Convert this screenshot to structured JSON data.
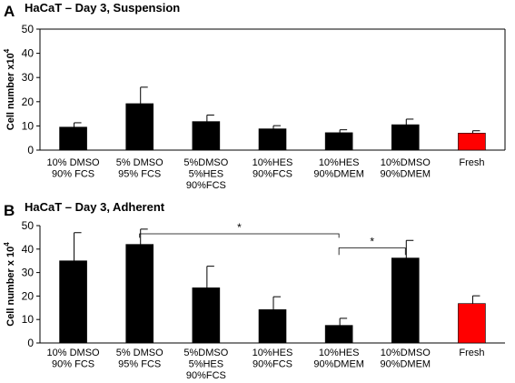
{
  "chart_data": [
    {
      "type": "bar",
      "panel": "A",
      "title": "HaCaT – Day 3,  Suspension",
      "ylabel": "Cell number x10",
      "ylabel_exp": "4",
      "ylim": [
        0,
        50
      ],
      "yticks": [
        "0",
        "10",
        "20",
        "30",
        "40",
        "50"
      ],
      "categories": [
        [
          "10% DMSO",
          "90% FCS"
        ],
        [
          "5% DMSO",
          "95% FCS"
        ],
        [
          "5%DMSO",
          "5%HES",
          "90%FCS"
        ],
        [
          "10%HES",
          "90%FCS"
        ],
        [
          "10%HES",
          "90%DMEM"
        ],
        [
          "10%DMSO",
          "90%DMEM"
        ],
        [
          "Fresh"
        ]
      ],
      "values": [
        9.5,
        19.2,
        11.8,
        8.8,
        7.2,
        10.5,
        7.0
      ],
      "errors": [
        1.8,
        6.8,
        2.7,
        1.3,
        1.2,
        2.3,
        1.0
      ],
      "bar_colors": [
        "#000000",
        "#000000",
        "#000000",
        "#000000",
        "#000000",
        "#000000",
        "#ff0000"
      ],
      "grid": false
    },
    {
      "type": "bar",
      "panel": "B",
      "title": "HaCaT  – Day 3,  Adherent",
      "ylabel": "Cell number x 10",
      "ylabel_exp": "4",
      "ylim": [
        0,
        50
      ],
      "yticks": [
        "0",
        "10",
        "20",
        "30",
        "40",
        "50"
      ],
      "categories": [
        [
          "10% DMSO",
          "90% FCS"
        ],
        [
          "5% DMSO",
          "95% FCS"
        ],
        [
          "5%DMSO",
          "5%HES",
          "90%FCS"
        ],
        [
          "10%HES",
          "90%FCS"
        ],
        [
          "10%HES",
          "90%DMEM"
        ],
        [
          "10%DMSO",
          "90%DMEM"
        ],
        [
          "Fresh"
        ]
      ],
      "values": [
        35.0,
        42.0,
        23.5,
        14.2,
        7.5,
        36.2,
        16.8
      ],
      "errors": [
        12.0,
        6.5,
        9.2,
        5.5,
        3.0,
        7.5,
        3.3
      ],
      "bar_colors": [
        "#000000",
        "#000000",
        "#000000",
        "#000000",
        "#000000",
        "#000000",
        "#ff0000"
      ],
      "significance": [
        {
          "from": 1,
          "to": 4,
          "label": "*"
        },
        {
          "from": 4,
          "to": 5,
          "label": "*"
        }
      ],
      "grid": false
    }
  ]
}
